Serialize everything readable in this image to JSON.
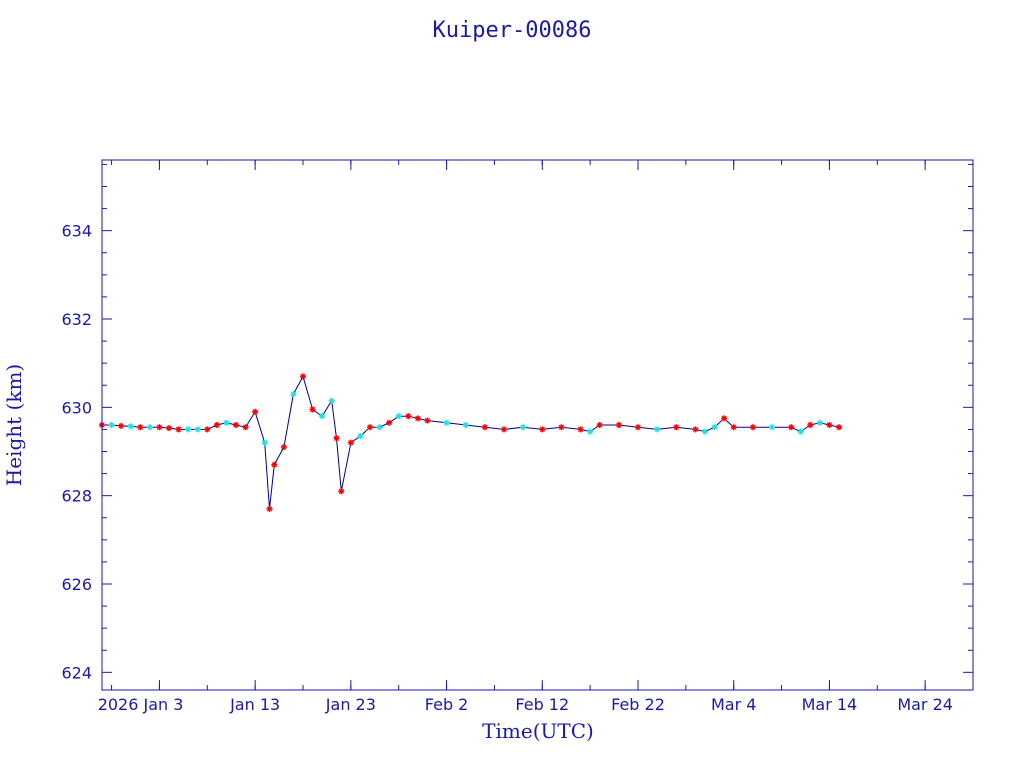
{
  "chart_data": {
    "type": "line",
    "title": "Kuiper-00086",
    "xlabel": "Time(UTC)",
    "ylabel": "Height (km)",
    "x_range": [
      "2025-12-28",
      "2026-03-29"
    ],
    "ylim": [
      623.6,
      635.6
    ],
    "y_ticks": [
      624,
      626,
      628,
      630,
      632,
      634
    ],
    "x_ticks": [
      {
        "date": "2026-01-03",
        "label": "2026 Jan  3"
      },
      {
        "date": "2026-01-13",
        "label": "Jan 13"
      },
      {
        "date": "2026-01-23",
        "label": "Jan 23"
      },
      {
        "date": "2026-02-02",
        "label": "Feb  2"
      },
      {
        "date": "2026-02-12",
        "label": "Feb 12"
      },
      {
        "date": "2026-02-22",
        "label": "Feb 22"
      },
      {
        "date": "2026-03-04",
        "label": "Mar  4"
      },
      {
        "date": "2026-03-14",
        "label": "Mar 14"
      },
      {
        "date": "2026-03-24",
        "label": "Mar 24"
      }
    ],
    "grid": false,
    "colors": {
      "axis": "#1a1aa6",
      "line": "#00008b",
      "marker_red": "#ff0000",
      "marker_cyan": "#22e0e0"
    },
    "series": [
      {
        "points": [
          [
            "2025-12-28",
            629.6
          ],
          [
            "2025-12-29",
            629.6
          ],
          [
            "2025-12-30",
            629.58
          ],
          [
            "2025-12-31",
            629.57
          ],
          [
            "2026-01-01",
            629.55
          ],
          [
            "2026-01-02",
            629.55
          ],
          [
            "2026-01-03",
            629.55
          ],
          [
            "2026-01-04",
            629.53
          ],
          [
            "2026-01-05",
            629.5
          ],
          [
            "2026-01-06",
            629.5
          ],
          [
            "2026-01-07",
            629.5
          ],
          [
            "2026-01-08",
            629.5
          ],
          [
            "2026-01-09",
            629.6
          ],
          [
            "2026-01-10",
            629.65
          ],
          [
            "2026-01-11",
            629.6
          ],
          [
            "2026-01-12",
            629.55
          ],
          [
            "2026-01-13",
            629.9
          ],
          [
            "2026-01-14",
            629.2
          ],
          [
            "2026-01-14T12:00",
            627.7
          ],
          [
            "2026-01-15",
            628.7
          ],
          [
            "2026-01-16",
            629.1
          ],
          [
            "2026-01-17",
            630.3
          ],
          [
            "2026-01-18",
            630.7
          ],
          [
            "2026-01-19",
            629.95
          ],
          [
            "2026-01-20",
            629.8
          ],
          [
            "2026-01-21",
            630.15
          ],
          [
            "2026-01-21T12:00",
            629.3
          ],
          [
            "2026-01-22",
            628.1
          ],
          [
            "2026-01-23",
            629.2
          ],
          [
            "2026-01-24",
            629.35
          ],
          [
            "2026-01-25",
            629.55
          ],
          [
            "2026-01-26",
            629.55
          ],
          [
            "2026-01-27",
            629.65
          ],
          [
            "2026-01-28",
            629.8
          ],
          [
            "2026-01-29",
            629.8
          ],
          [
            "2026-01-30",
            629.75
          ],
          [
            "2026-01-31",
            629.7
          ],
          [
            "2026-02-02",
            629.65
          ],
          [
            "2026-02-04",
            629.6
          ],
          [
            "2026-02-06",
            629.55
          ],
          [
            "2026-02-08",
            629.5
          ],
          [
            "2026-02-10",
            629.55
          ],
          [
            "2026-02-12",
            629.5
          ],
          [
            "2026-02-14",
            629.55
          ],
          [
            "2026-02-16",
            629.5
          ],
          [
            "2026-02-17",
            629.45
          ],
          [
            "2026-02-18",
            629.6
          ],
          [
            "2026-02-20",
            629.6
          ],
          [
            "2026-02-22",
            629.55
          ],
          [
            "2026-02-24",
            629.5
          ],
          [
            "2026-02-26",
            629.55
          ],
          [
            "2026-02-28",
            629.5
          ],
          [
            "2026-03-01",
            629.45
          ],
          [
            "2026-03-02",
            629.55
          ],
          [
            "2026-03-03",
            629.75
          ],
          [
            "2026-03-04",
            629.55
          ],
          [
            "2026-03-06",
            629.55
          ],
          [
            "2026-03-08",
            629.55
          ],
          [
            "2026-03-10",
            629.55
          ],
          [
            "2026-03-11",
            629.45
          ],
          [
            "2026-03-12",
            629.6
          ],
          [
            "2026-03-13",
            629.65
          ],
          [
            "2026-03-14",
            629.6
          ],
          [
            "2026-03-15",
            629.55
          ]
        ]
      }
    ]
  }
}
